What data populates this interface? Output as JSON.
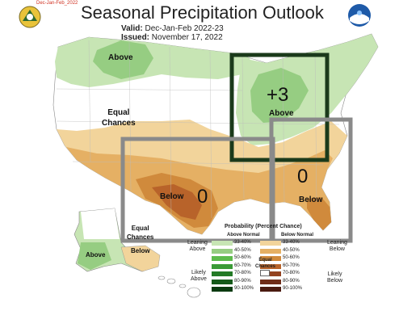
{
  "header": {
    "title": "Seasonal Precipitation Outlook",
    "valid_label": "Valid:",
    "valid_value": "Dec-Jan-Feb 2022-23",
    "issued_label": "Issued:",
    "issued_value": "November 17, 2022",
    "corner_text": "Dec-Jan-Feb_2022"
  },
  "map": {
    "labels": {
      "above_north": "Above",
      "equal_chances_west": [
        "Equal",
        "Chances"
      ],
      "above_great_lakes": "Above",
      "below_texas": "Below",
      "below_southeast": "Below",
      "equal_chances_alaska": [
        "Equal",
        "Chances"
      ],
      "above_alaska": "Above",
      "below_alaska": "Below"
    },
    "annotations": {
      "great_lakes_score": "+3",
      "texas_score": "0",
      "southeast_score": "0"
    },
    "colors": {
      "above_33_40": "#c7e5b4",
      "above_40_50": "#96cd82",
      "above_50_60": "#5dbb4c",
      "below_33_40": "#f2d49b",
      "below_40_50": "#e5b064",
      "below_50_60": "#d08a3c",
      "below_60_70": "#b8632a",
      "box_dark": "#1b3a1b",
      "box_gray": "#8a8a8a"
    }
  },
  "legend": {
    "title": "Probability (Percent Chance)",
    "above_header": "Above Normal",
    "below_header": "Below Normal",
    "equal_label": [
      "Equal",
      "Chances"
    ],
    "leaning_above": [
      "Leaning",
      "Above"
    ],
    "likely_above": [
      "Likely",
      "Above"
    ],
    "leaning_below": [
      "Leaning",
      "Below"
    ],
    "likely_below": [
      "Likely",
      "Below"
    ],
    "above_bins": [
      {
        "label": "33-40%",
        "color": "#c7e5b4"
      },
      {
        "label": "40-50%",
        "color": "#96cd82"
      },
      {
        "label": "50-60%",
        "color": "#5dbb4c"
      },
      {
        "label": "60-70%",
        "color": "#3a9a36"
      },
      {
        "label": "70-80%",
        "color": "#237a26"
      },
      {
        "label": "80-90%",
        "color": "#145a1a"
      },
      {
        "label": "90-100%",
        "color": "#0a3a10"
      }
    ],
    "below_bins": [
      {
        "label": "33-40%",
        "color": "#f2d49b"
      },
      {
        "label": "40-50%",
        "color": "#e5b064"
      },
      {
        "label": "50-60%",
        "color": "#d08a3c"
      },
      {
        "label": "60-70%",
        "color": "#b8632a"
      },
      {
        "label": "70-80%",
        "color": "#944320"
      },
      {
        "label": "80-90%",
        "color": "#6f2c18"
      },
      {
        "label": "90-100%",
        "color": "#4a1a10"
      }
    ]
  }
}
